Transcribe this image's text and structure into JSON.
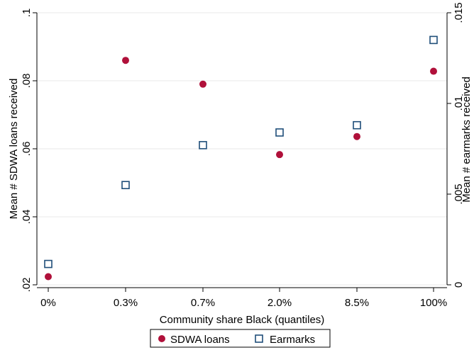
{
  "chart_data": {
    "type": "scatter",
    "xlabel": "Community share Black (quantiles)",
    "ylabel_left": "Mean # SDWA loans received",
    "ylabel_right": "Mean # earmarks received",
    "categories": [
      "0%",
      "0.3%",
      "0.7%",
      "2.0%",
      "8.5%",
      "100%"
    ],
    "ylim_left": [
      0.02,
      0.1
    ],
    "ylim_right": [
      0,
      0.015
    ],
    "yticks_left": [
      {
        "value": 0.02,
        "label": ".02"
      },
      {
        "value": 0.04,
        "label": ".04"
      },
      {
        "value": 0.06,
        "label": ".06"
      },
      {
        "value": 0.08,
        "label": ".08"
      },
      {
        "value": 0.1,
        "label": ".1"
      }
    ],
    "yticks_right": [
      {
        "value": 0,
        "label": "0"
      },
      {
        "value": 0.005,
        "label": ".005"
      },
      {
        "value": 0.01,
        "label": ".01"
      },
      {
        "value": 0.015,
        "label": ".015"
      }
    ],
    "grid": true,
    "legend_position": "bottom",
    "series": [
      {
        "name": "SDWA loans",
        "axis": "left",
        "marker": "circle",
        "color": "#b0103a",
        "values": [
          0.0224,
          0.086,
          0.079,
          0.0583,
          0.0636,
          0.0828
        ]
      },
      {
        "name": "Earmarks",
        "axis": "right",
        "marker": "square",
        "color": "#1f4e79",
        "values": [
          0.00115,
          0.0055,
          0.0077,
          0.0084,
          0.0088,
          0.0135
        ]
      }
    ]
  }
}
